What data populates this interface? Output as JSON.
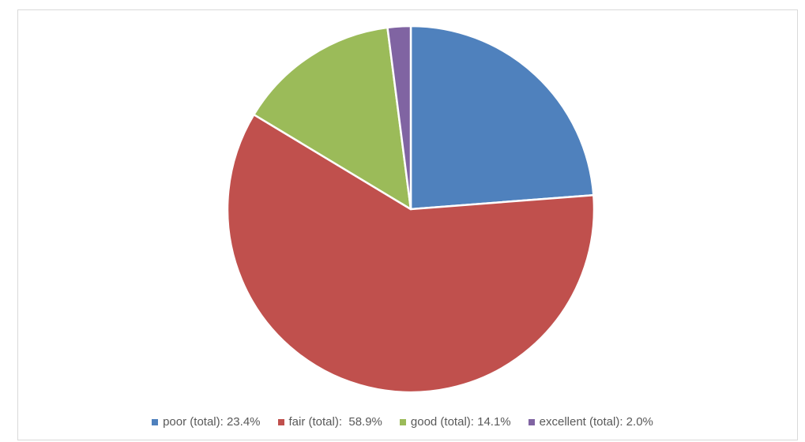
{
  "chart_data": {
    "type": "pie",
    "categories": [
      "poor (total)",
      "fair (total)",
      "good (total)",
      "excellent (total)"
    ],
    "values": [
      23.4,
      58.9,
      14.1,
      2.0
    ],
    "colors": [
      "#4F81BD",
      "#C0504D",
      "#9BBB59",
      "#8064A2"
    ],
    "legend_labels": [
      "poor (total): 23.4%",
      "fair (total):  58.9%",
      "good (total): 14.1%",
      "excellent (total): 2.0%"
    ],
    "legend_position": "bottom",
    "start": "top",
    "direction": "clockwise"
  }
}
